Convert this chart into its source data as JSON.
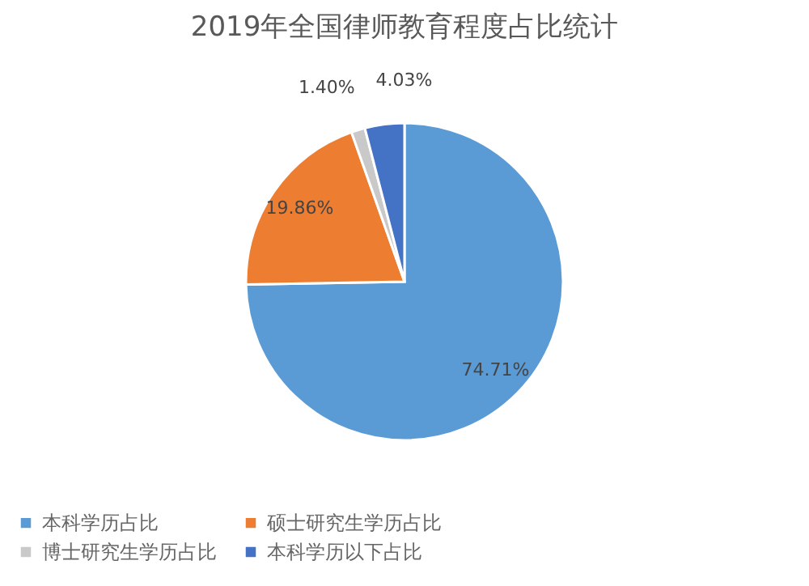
{
  "chart_data": {
    "type": "pie",
    "title": "2019年全国律师教育程度占比统计",
    "categories": [
      "本科学历占比",
      "硕士研究生学历占比",
      "博士研究生学历占比",
      "本科学历以下占比"
    ],
    "values": [
      74.71,
      19.86,
      1.4,
      4.03
    ],
    "colors": [
      "#5b9bd5",
      "#ed7d31",
      "#c9c9c9",
      "#4472c4"
    ],
    "value_labels": [
      "74.71%",
      "19.86%",
      "1.40%",
      "4.03%"
    ],
    "legend": "bottom"
  }
}
